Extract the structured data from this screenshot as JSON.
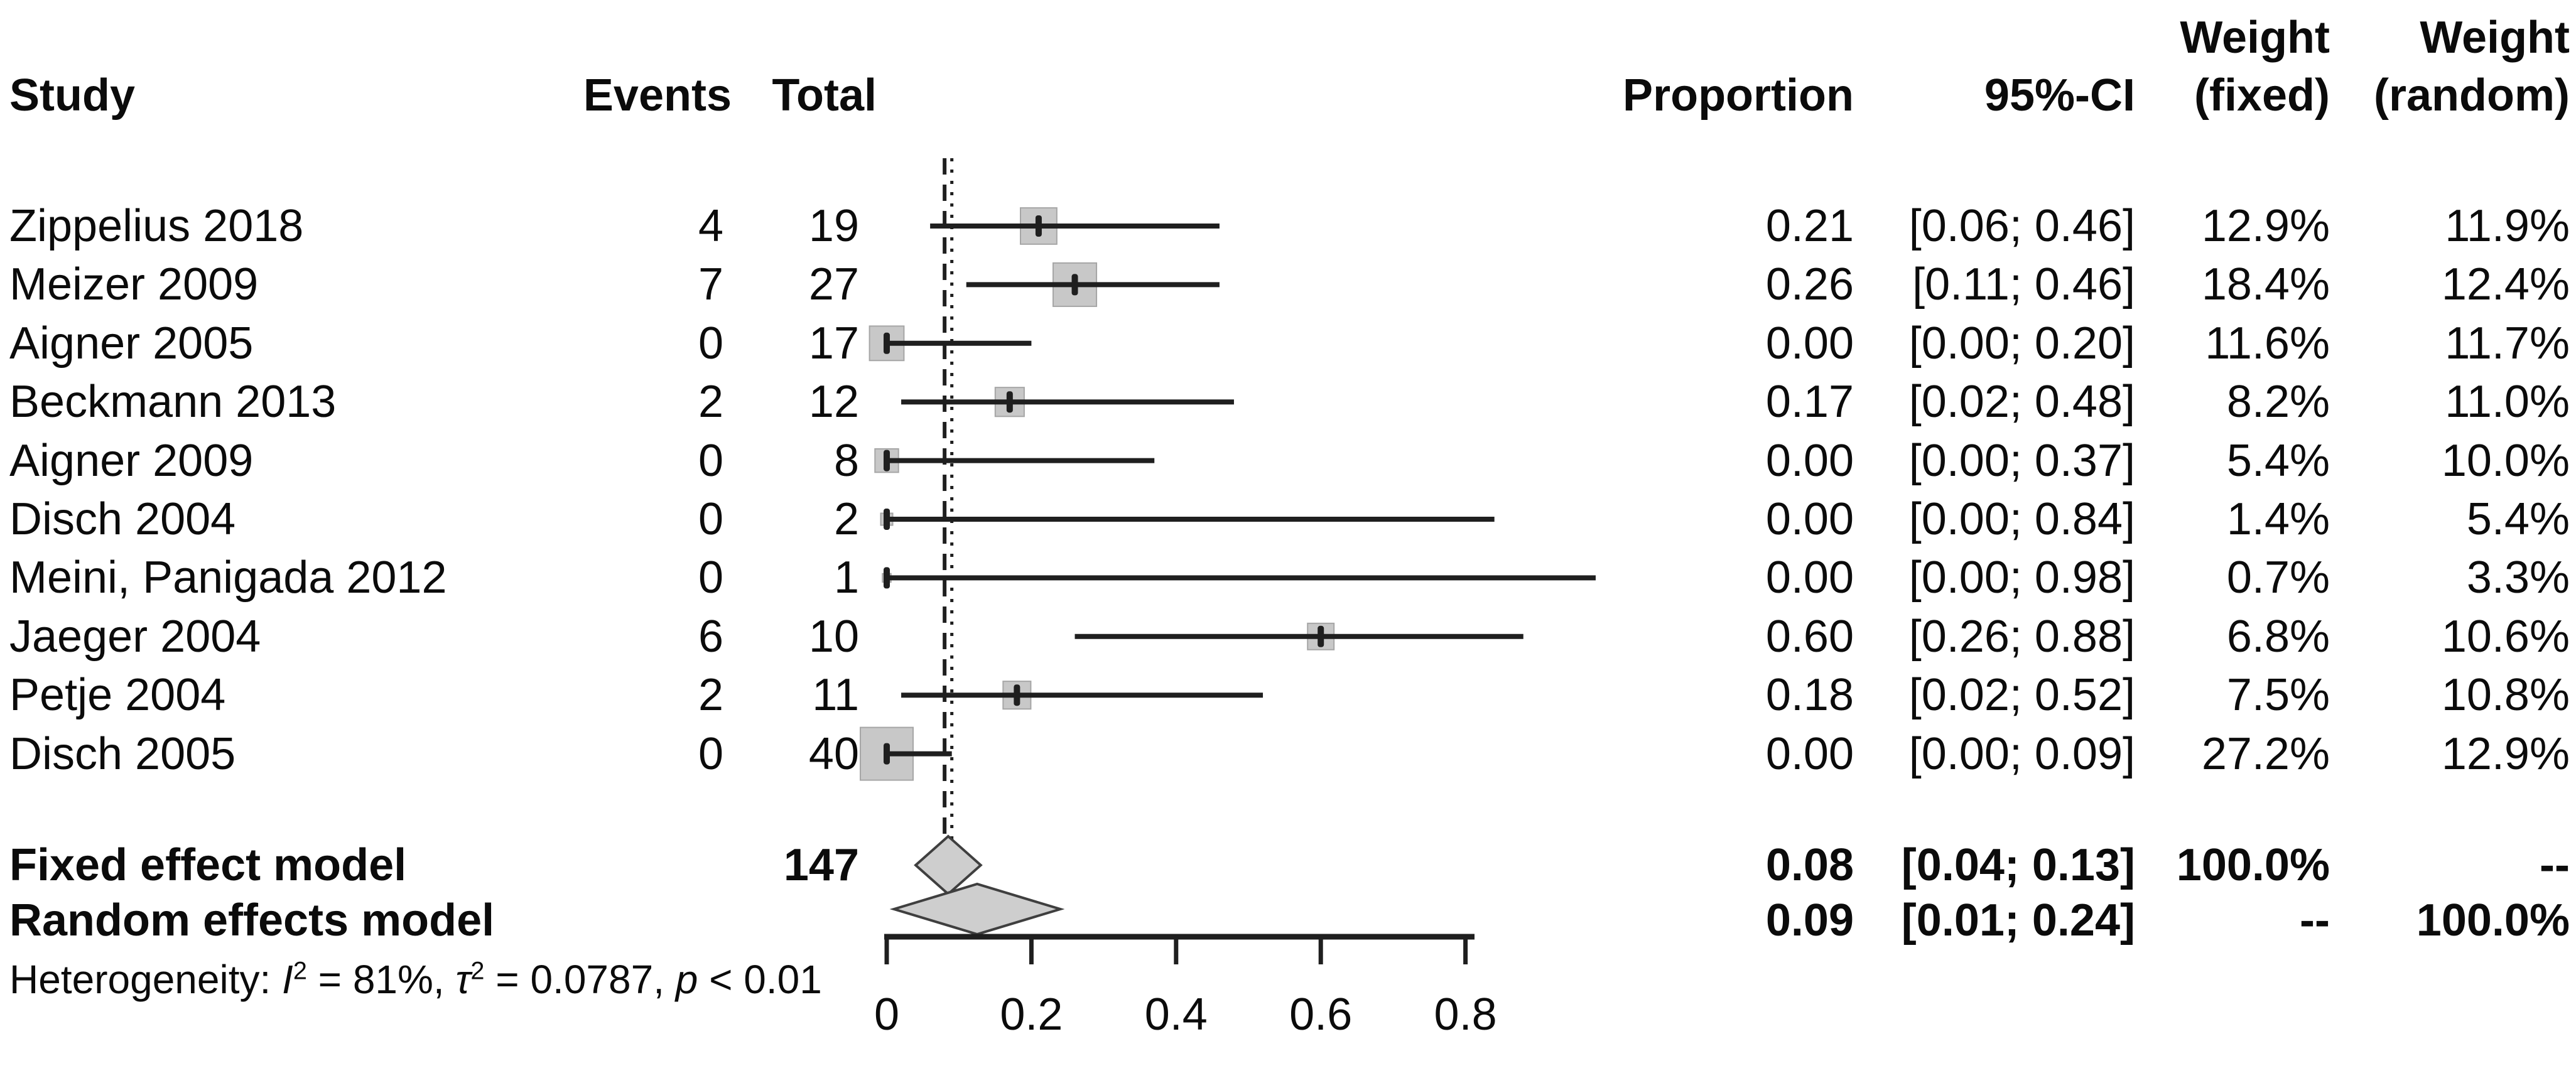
{
  "header": {
    "study": "Study",
    "events": "Events",
    "total": "Total",
    "proportion": "Proportion",
    "ci": "95%-CI",
    "weight_fixed_line1": "Weight",
    "weight_fixed_line2": "(fixed)",
    "weight_random_line1": "Weight",
    "weight_random_line2": "(random)"
  },
  "chart_data": {
    "type": "forest",
    "x_axis": {
      "tick_values": [
        0,
        0.2,
        0.4,
        0.6,
        0.8
      ],
      "tick_labels": [
        "0",
        "0.2",
        "0.4",
        "0.6",
        "0.8"
      ],
      "drawn_range": [
        0,
        0.812
      ]
    },
    "reference_lines": [
      {
        "name": "fixed-effect-estimate",
        "style": "dashed",
        "value": 0.08
      },
      {
        "name": "random-effects-estimate",
        "style": "dotted",
        "value": 0.09
      }
    ],
    "studies": [
      {
        "label": "Zippelius 2018",
        "events": "4",
        "total": "19",
        "proportion": 0.21,
        "proportion_text": "0.21",
        "ci_lower": 0.06,
        "ci_upper": 0.46,
        "ci_text": "[0.06; 0.46]",
        "weight_fixed": 12.9,
        "weight_fixed_text": "12.9%",
        "weight_random": 11.9,
        "weight_random_text": "11.9%"
      },
      {
        "label": "Meizer 2009",
        "events": "7",
        "total": "27",
        "proportion": 0.26,
        "proportion_text": "0.26",
        "ci_lower": 0.11,
        "ci_upper": 0.46,
        "ci_text": "[0.11; 0.46]",
        "weight_fixed": 18.4,
        "weight_fixed_text": "18.4%",
        "weight_random": 12.4,
        "weight_random_text": "12.4%"
      },
      {
        "label": "Aigner 2005",
        "events": "0",
        "total": "17",
        "proportion": 0.0,
        "proportion_text": "0.00",
        "ci_lower": 0.0,
        "ci_upper": 0.2,
        "ci_text": "[0.00; 0.20]",
        "weight_fixed": 11.6,
        "weight_fixed_text": "11.6%",
        "weight_random": 11.7,
        "weight_random_text": "11.7%"
      },
      {
        "label": "Beckmann 2013",
        "events": "2",
        "total": "12",
        "proportion": 0.17,
        "proportion_text": "0.17",
        "ci_lower": 0.02,
        "ci_upper": 0.48,
        "ci_text": "[0.02; 0.48]",
        "weight_fixed": 8.2,
        "weight_fixed_text": "8.2%",
        "weight_random": 11.0,
        "weight_random_text": "11.0%"
      },
      {
        "label": "Aigner 2009",
        "events": "0",
        "total": "8",
        "proportion": 0.0,
        "proportion_text": "0.00",
        "ci_lower": 0.0,
        "ci_upper": 0.37,
        "ci_text": "[0.00; 0.37]",
        "weight_fixed": 5.4,
        "weight_fixed_text": "5.4%",
        "weight_random": 10.0,
        "weight_random_text": "10.0%"
      },
      {
        "label": "Disch 2004",
        "events": "0",
        "total": "2",
        "proportion": 0.0,
        "proportion_text": "0.00",
        "ci_lower": 0.0,
        "ci_upper": 0.84,
        "ci_text": "[0.00; 0.84]",
        "weight_fixed": 1.4,
        "weight_fixed_text": "1.4%",
        "weight_random": 5.4,
        "weight_random_text": "5.4%"
      },
      {
        "label": "Meini, Panigada 2012",
        "events": "0",
        "total": "1",
        "proportion": 0.0,
        "proportion_text": "0.00",
        "ci_lower": 0.0,
        "ci_upper": 0.98,
        "ci_text": "[0.00; 0.98]",
        "weight_fixed": 0.7,
        "weight_fixed_text": "0.7%",
        "weight_random": 3.3,
        "weight_random_text": "3.3%"
      },
      {
        "label": "Jaeger 2004",
        "events": "6",
        "total": "10",
        "proportion": 0.6,
        "proportion_text": "0.60",
        "ci_lower": 0.26,
        "ci_upper": 0.88,
        "ci_text": "[0.26; 0.88]",
        "weight_fixed": 6.8,
        "weight_fixed_text": "6.8%",
        "weight_random": 10.6,
        "weight_random_text": "10.6%"
      },
      {
        "label": "Petje 2004",
        "events": "2",
        "total": "11",
        "proportion": 0.18,
        "proportion_text": "0.18",
        "ci_lower": 0.02,
        "ci_upper": 0.52,
        "ci_text": "[0.02; 0.52]",
        "weight_fixed": 7.5,
        "weight_fixed_text": "7.5%",
        "weight_random": 10.8,
        "weight_random_text": "10.8%"
      },
      {
        "label": "Disch 2005",
        "events": "0",
        "total": "40",
        "proportion": 0.0,
        "proportion_text": "0.00",
        "ci_lower": 0.0,
        "ci_upper": 0.09,
        "ci_text": "[0.00; 0.09]",
        "weight_fixed": 27.2,
        "weight_fixed_text": "27.2%",
        "weight_random": 12.9,
        "weight_random_text": "12.9%"
      }
    ],
    "summaries": [
      {
        "label": "Fixed effect model",
        "total": "147",
        "proportion": 0.08,
        "proportion_text": "0.08",
        "ci_lower": 0.04,
        "ci_upper": 0.13,
        "ci_text": "[0.04; 0.13]",
        "weight_fixed_text": "100.0%",
        "weight_random_text": "--",
        "diamond": "fixed"
      },
      {
        "label": "Random effects model",
        "total": "",
        "proportion": 0.09,
        "proportion_text": "0.09",
        "ci_lower": 0.01,
        "ci_upper": 0.24,
        "ci_text": "[0.01; 0.24]",
        "weight_fixed_text": "--",
        "weight_random_text": "100.0%",
        "diamond": "random"
      }
    ],
    "heterogeneity": {
      "prefix": "Heterogeneity: ",
      "i_sym": "I",
      "i_sup": "2",
      "i_rest": " = 81%, ",
      "tau_sym": "τ",
      "tau_sup": "2",
      "tau_rest": " = 0.0787, ",
      "p_sym": "p",
      "p_rest": " < 0.01"
    },
    "colors": {
      "square_fill": "#c8c8c8",
      "square_stroke": "#a6a6a6",
      "diamond_fill": "#cecece",
      "diamond_stroke": "#3f3f3f",
      "line": "#1f1f1f",
      "text": "#0b0b0b"
    }
  }
}
